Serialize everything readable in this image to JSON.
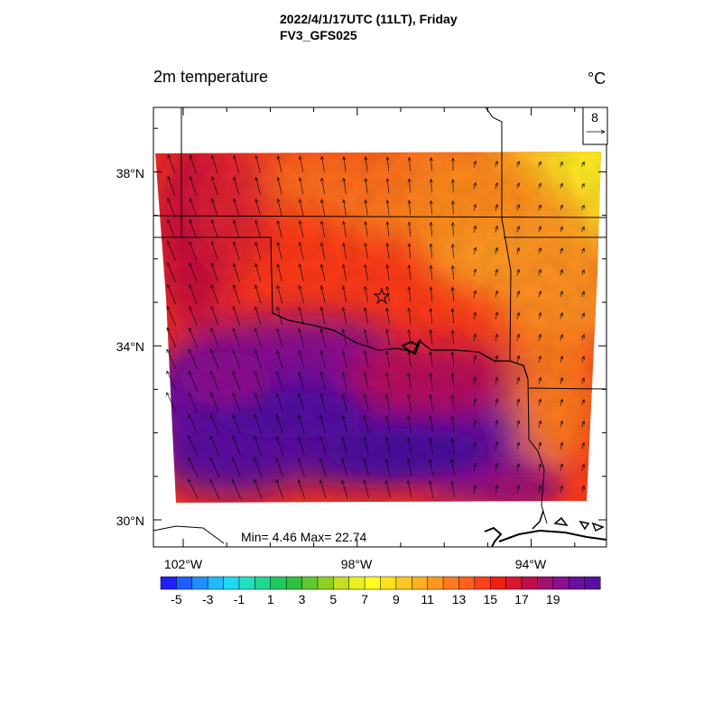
{
  "header": {
    "line1": "2022/4/1/17UTC (11LT), Friday",
    "line2": "FV3_GFS025"
  },
  "variable": "2m temperature",
  "units": "°C",
  "vector_reference": {
    "value": "8"
  },
  "stats": "Min= 4.46 Max= 22.74",
  "lat_labels": [
    "38°N",
    "34°N",
    "30°N"
  ],
  "lon_labels": [
    "102°W",
    "98°W",
    "94°W"
  ],
  "colorbar": {
    "colors": [
      "#2020ff",
      "#1e5cff",
      "#1f8fff",
      "#20b8ff",
      "#20d8f0",
      "#20e0c0",
      "#20d890",
      "#20c860",
      "#30c040",
      "#60c830",
      "#90d020",
      "#c0e020",
      "#e8f020",
      "#ffff20",
      "#ffe020",
      "#ffc820",
      "#ffb020",
      "#ff9820",
      "#ff7a1e",
      "#ff601c",
      "#ff401a",
      "#f02010",
      "#d81830",
      "#c01048",
      "#a01070",
      "#8a1090",
      "#6a10a0",
      "#5810a0"
    ],
    "tick_labels": [
      "-5",
      "-3",
      "-1",
      "1",
      "3",
      "5",
      "7",
      "9",
      "11",
      "13",
      "15",
      "17",
      "19"
    ]
  }
}
